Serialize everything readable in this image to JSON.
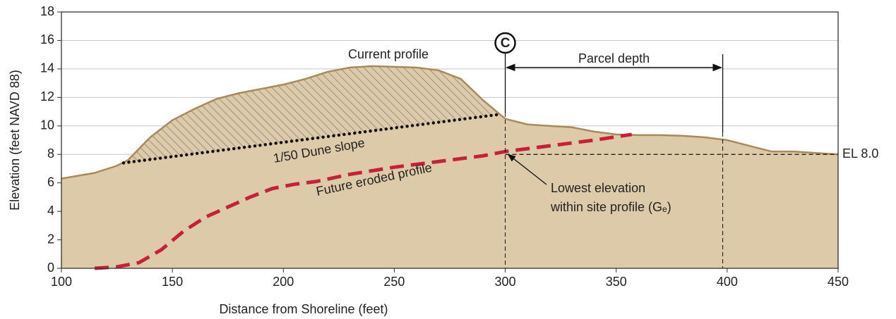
{
  "chart_data": {
    "type": "profile",
    "xlabel": "Distance from Shoreline (feet)",
    "ylabel": "Elevation (feet NAVD 88)",
    "xlim": [
      100,
      450
    ],
    "xticks": [
      100,
      150,
      200,
      250,
      300,
      350,
      400,
      450
    ],
    "ylim": [
      0,
      18
    ],
    "yticks": [
      0,
      2,
      4,
      6,
      8,
      10,
      12,
      14,
      16,
      18
    ],
    "grid": true,
    "series": [
      {
        "name": "Current profile",
        "style": "area",
        "color": "#dccaa9",
        "edge": "#a88a5c",
        "x": [
          100,
          115,
          125,
          130,
          140,
          150,
          160,
          170,
          180,
          190,
          200,
          210,
          220,
          230,
          240,
          250,
          260,
          270,
          280,
          290,
          300,
          310,
          320,
          330,
          340,
          350,
          360,
          370,
          380,
          390,
          400,
          410,
          420,
          430,
          440,
          450
        ],
        "y": [
          6.3,
          6.7,
          7.2,
          7.6,
          9.2,
          10.4,
          11.2,
          11.9,
          12.3,
          12.6,
          12.9,
          13.3,
          13.8,
          14.1,
          14.2,
          14.15,
          14.1,
          13.9,
          13.3,
          11.8,
          10.5,
          10.1,
          10.0,
          9.9,
          9.6,
          9.4,
          9.35,
          9.35,
          9.3,
          9.2,
          9.0,
          8.6,
          8.2,
          8.2,
          8.1,
          8.0
        ]
      },
      {
        "name": "1/50 Dune slope",
        "style": "dotted",
        "color": "#111111",
        "x": [
          128,
          297
        ],
        "y": [
          7.4,
          10.8
        ]
      },
      {
        "name": "Future eroded profile",
        "style": "dashed",
        "color": "#c8203a",
        "x": [
          115,
          125,
          135,
          145,
          155,
          165,
          175,
          185,
          195,
          205,
          215,
          230,
          250,
          270,
          290,
          300,
          320,
          340,
          357
        ],
        "y": [
          0,
          0.1,
          0.4,
          1.3,
          2.6,
          3.6,
          4.3,
          5.0,
          5.6,
          5.9,
          6.1,
          6.6,
          7.1,
          7.5,
          7.9,
          8.2,
          8.6,
          9.0,
          9.4
        ]
      }
    ],
    "reference_line": {
      "label": "EL 8.0",
      "y": 8,
      "x_start": 300
    },
    "site_marker": {
      "label": "C",
      "x": 300
    },
    "parcel": {
      "label": "Parcel depth",
      "x_start": 300,
      "x_end": 398,
      "y": 14.1
    },
    "callout": {
      "lines": [
        "Lowest elevation",
        "within site profile (Gₑ)"
      ],
      "x": 300,
      "y": 8.2
    }
  }
}
